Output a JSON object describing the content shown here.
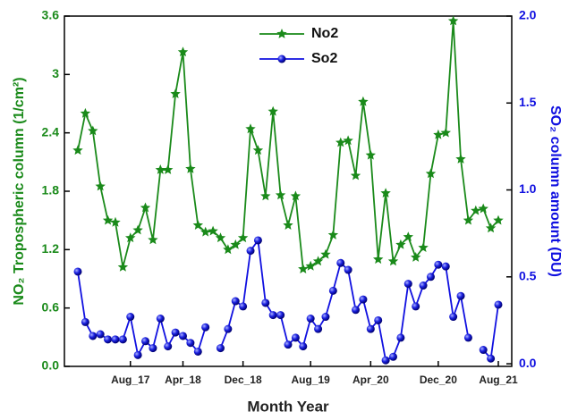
{
  "chart_data": {
    "type": "line",
    "xlabel": "Month  Year",
    "ylabel": "NO₂ Tropospheric column (1/cm²)",
    "y2label": "SO₂ column amount (DU)",
    "categories": [
      null,
      null,
      null,
      null,
      null,
      null,
      null,
      "Aug_17",
      null,
      null,
      null,
      null,
      null,
      null,
      "Apr_18",
      null,
      null,
      null,
      null,
      null,
      null,
      null,
      "Dec_18",
      null,
      null,
      null,
      null,
      null,
      null,
      null,
      null,
      "Aug_19",
      null,
      null,
      null,
      null,
      null,
      null,
      null,
      "Apr_20",
      null,
      null,
      null,
      null,
      null,
      null,
      null,
      null,
      "Dec_20",
      null,
      null,
      null,
      null,
      null,
      null,
      null,
      "Aug_21"
    ],
    "series": [
      {
        "name": "No2",
        "color": "#1a8a1a",
        "marker": "star",
        "values": [
          2.22,
          2.6,
          2.42,
          1.85,
          1.5,
          1.48,
          1.02,
          1.32,
          1.4,
          1.63,
          1.3,
          2.02,
          2.02,
          2.8,
          3.23,
          2.03,
          1.45,
          1.38,
          1.39,
          1.32,
          1.2,
          1.25,
          1.32,
          2.44,
          2.22,
          1.75,
          2.62,
          1.76,
          1.45,
          1.75,
          1.0,
          1.03,
          1.08,
          1.15,
          1.35,
          2.3,
          2.32,
          1.96,
          2.72,
          2.17,
          1.1,
          1.78,
          1.08,
          1.25,
          1.33,
          1.12,
          1.22,
          1.98,
          2.38,
          2.4,
          3.55,
          2.13,
          1.5,
          1.6,
          1.62,
          1.42,
          1.5
        ]
      },
      {
        "name": "So2",
        "color": "#1010e0",
        "marker": "sphere",
        "axis": "y2",
        "values": [
          0.53,
          0.24,
          0.16,
          0.17,
          0.14,
          0.14,
          0.14,
          0.27,
          0.05,
          0.13,
          0.09,
          0.26,
          0.1,
          0.18,
          0.16,
          0.12,
          0.07,
          0.21,
          null,
          0.09,
          0.2,
          0.36,
          0.33,
          0.65,
          0.71,
          0.35,
          0.28,
          0.28,
          0.11,
          0.15,
          0.1,
          0.26,
          0.2,
          0.27,
          0.42,
          0.58,
          0.54,
          0.31,
          0.37,
          0.2,
          0.25,
          0.02,
          0.04,
          0.15,
          0.46,
          0.33,
          0.45,
          0.5,
          0.57,
          0.56,
          0.27,
          0.39,
          0.15,
          null,
          0.08,
          0.03,
          0.34
        ]
      }
    ],
    "ylim": [
      0,
      3.6
    ],
    "yticks": [
      {
        "value": 0,
        "label": "0.0"
      },
      0.6,
      1.2,
      1.8,
      2.4,
      3.0,
      3.6
    ],
    "y2lim": [
      -0.015,
      2.0
    ],
    "y2ticks": [
      {
        "value": 0,
        "label": "0.0"
      },
      0.5,
      {
        "value": 1,
        "label": "1.0"
      },
      1.5,
      {
        "value": 2,
        "label": "2.0"
      }
    ],
    "legend": "top"
  }
}
